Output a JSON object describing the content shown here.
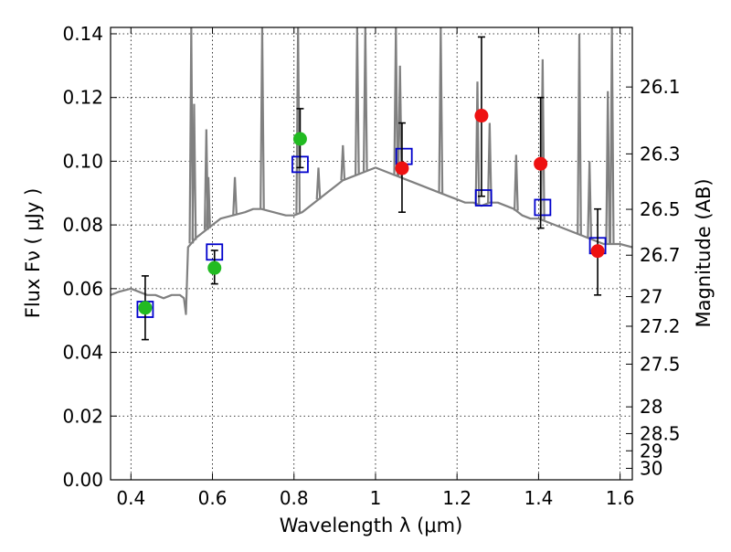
{
  "chart_data": {
    "type": "scatter",
    "title": "",
    "xlabel": "Wavelength  λ (μm)",
    "ylabel": "Flux  Fν  ( μJy )",
    "ylabel_right": "Magnitude (AB)",
    "xlim": [
      0.35,
      1.63
    ],
    "ylim": [
      0.0,
      0.142
    ],
    "grid": true,
    "x_ticks": [
      0.4,
      0.6,
      0.8,
      1.0,
      1.2,
      1.4,
      1.6
    ],
    "x_tick_labels": [
      "0.4",
      "0.6",
      "0.8",
      "1",
      "1.2",
      "1.4",
      "1.6"
    ],
    "y_ticks": [
      0.0,
      0.02,
      0.04,
      0.06,
      0.08,
      0.1,
      0.12,
      0.14
    ],
    "y_tick_labels": [
      "0.00",
      "0.02",
      "0.04",
      "0.06",
      "0.08",
      "0.10",
      "0.12",
      "0.14"
    ],
    "right_ticks": [
      {
        "flux": 0.1233,
        "label": "26.1"
      },
      {
        "flux": 0.1023,
        "label": "26.3"
      },
      {
        "flux": 0.0849,
        "label": "26.5"
      },
      {
        "flux": 0.0705,
        "label": "26.7"
      },
      {
        "flux": 0.0575,
        "label": "27"
      },
      {
        "flux": 0.0482,
        "label": "27.2"
      },
      {
        "flux": 0.0363,
        "label": "27.5"
      },
      {
        "flux": 0.0229,
        "label": "28"
      },
      {
        "flux": 0.0145,
        "label": "28.5"
      },
      {
        "flux": 0.0091,
        "label": "29"
      },
      {
        "flux": 0.0036,
        "label": "30"
      }
    ],
    "series": [
      {
        "kind": "line",
        "color": "#808080",
        "points": [
          [
            0.35,
            0.058
          ],
          [
            0.37,
            0.059
          ],
          [
            0.4,
            0.06
          ],
          [
            0.42,
            0.059
          ],
          [
            0.44,
            0.058
          ],
          [
            0.46,
            0.058
          ],
          [
            0.48,
            0.057
          ],
          [
            0.5,
            0.058
          ],
          [
            0.52,
            0.058
          ],
          [
            0.53,
            0.057
          ],
          [
            0.535,
            0.052
          ],
          [
            0.54,
            0.073
          ],
          [
            0.56,
            0.076
          ],
          [
            0.58,
            0.078
          ],
          [
            0.6,
            0.08
          ],
          [
            0.62,
            0.082
          ],
          [
            0.65,
            0.083
          ],
          [
            0.68,
            0.084
          ],
          [
            0.7,
            0.085
          ],
          [
            0.72,
            0.085
          ],
          [
            0.75,
            0.084
          ],
          [
            0.78,
            0.083
          ],
          [
            0.8,
            0.083
          ],
          [
            0.82,
            0.084
          ],
          [
            0.84,
            0.086
          ],
          [
            0.86,
            0.088
          ],
          [
            0.88,
            0.09
          ],
          [
            0.9,
            0.092
          ],
          [
            0.92,
            0.094
          ],
          [
            0.94,
            0.095
          ],
          [
            0.96,
            0.096
          ],
          [
            0.98,
            0.097
          ],
          [
            1.0,
            0.098
          ],
          [
            1.02,
            0.097
          ],
          [
            1.04,
            0.096
          ],
          [
            1.06,
            0.095
          ],
          [
            1.08,
            0.094
          ],
          [
            1.1,
            0.093
          ],
          [
            1.12,
            0.092
          ],
          [
            1.14,
            0.091
          ],
          [
            1.16,
            0.09
          ],
          [
            1.18,
            0.089
          ],
          [
            1.2,
            0.088
          ],
          [
            1.22,
            0.087
          ],
          [
            1.24,
            0.087
          ],
          [
            1.26,
            0.086
          ],
          [
            1.28,
            0.087
          ],
          [
            1.3,
            0.087
          ],
          [
            1.32,
            0.086
          ],
          [
            1.34,
            0.085
          ],
          [
            1.36,
            0.083
          ],
          [
            1.38,
            0.082
          ],
          [
            1.4,
            0.082
          ],
          [
            1.42,
            0.081
          ],
          [
            1.44,
            0.08
          ],
          [
            1.46,
            0.079
          ],
          [
            1.48,
            0.078
          ],
          [
            1.5,
            0.077
          ],
          [
            1.52,
            0.076
          ],
          [
            1.54,
            0.075
          ],
          [
            1.56,
            0.074
          ],
          [
            1.58,
            0.074
          ],
          [
            1.6,
            0.074
          ],
          [
            1.63,
            0.073
          ]
        ],
        "spikes": [
          [
            0.548,
            0.142
          ],
          [
            0.555,
            0.118
          ],
          [
            0.585,
            0.11
          ],
          [
            0.59,
            0.095
          ],
          [
            0.655,
            0.095
          ],
          [
            0.722,
            0.142
          ],
          [
            0.81,
            0.142
          ],
          [
            0.86,
            0.098
          ],
          [
            0.92,
            0.105
          ],
          [
            0.955,
            0.142
          ],
          [
            0.975,
            0.142
          ],
          [
            1.05,
            0.142
          ],
          [
            1.06,
            0.13
          ],
          [
            1.16,
            0.142
          ],
          [
            1.25,
            0.125
          ],
          [
            1.28,
            0.112
          ],
          [
            1.345,
            0.102
          ],
          [
            1.41,
            0.132
          ],
          [
            1.5,
            0.14
          ],
          [
            1.525,
            0.1
          ],
          [
            1.57,
            0.122
          ],
          [
            1.58,
            0.142
          ]
        ]
      },
      {
        "kind": "markers",
        "marker": "square-open",
        "color": "#0000cc",
        "points": [
          [
            0.435,
            0.0535
          ],
          [
            0.605,
            0.0715
          ],
          [
            0.815,
            0.099
          ],
          [
            1.07,
            0.1015
          ],
          [
            1.265,
            0.0885
          ],
          [
            1.41,
            0.0855
          ],
          [
            1.545,
            0.0735
          ]
        ]
      },
      {
        "kind": "markers",
        "marker": "circle",
        "color": "#22bb22",
        "points": [
          [
            0.435,
            0.054
          ],
          [
            0.605,
            0.0665
          ],
          [
            0.815,
            0.107
          ]
        ],
        "yerr": [
          [
            0.044,
            0.064
          ],
          [
            0.0615,
            0.072
          ],
          [
            0.098,
            0.1165
          ]
        ]
      },
      {
        "kind": "markers",
        "marker": "circle",
        "color": "#ee1111",
        "points": [
          [
            1.065,
            0.0978
          ],
          [
            1.26,
            0.1143
          ],
          [
            1.405,
            0.0992
          ],
          [
            1.545,
            0.0718
          ]
        ],
        "yerr": [
          [
            0.084,
            0.112
          ],
          [
            0.089,
            0.139
          ],
          [
            0.079,
            0.12
          ],
          [
            0.058,
            0.085
          ]
        ]
      }
    ]
  }
}
